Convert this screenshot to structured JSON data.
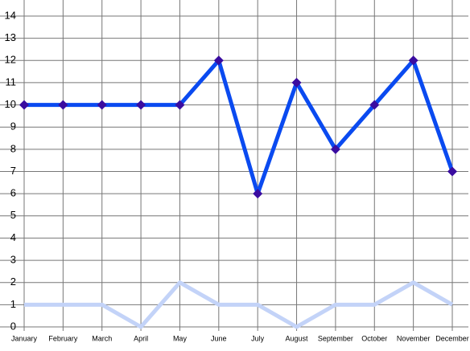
{
  "chart_data": {
    "type": "line",
    "categories": [
      "January",
      "February",
      "March",
      "April",
      "May",
      "June",
      "July",
      "August",
      "September",
      "October",
      "November",
      "December"
    ],
    "series": [
      {
        "color": "#0a4af0",
        "marker_color": "#3a0ca0",
        "values": [
          10,
          10,
          10,
          10,
          10,
          12,
          6,
          11,
          8,
          10,
          12,
          7
        ]
      },
      {
        "color": "#c3d3f8",
        "values": [
          1,
          1,
          1,
          0,
          2,
          1,
          1,
          0,
          1,
          1,
          2,
          1
        ]
      }
    ],
    "ylim": [
      0,
      14
    ],
    "yticks": [
      0,
      1,
      2,
      3,
      4,
      5,
      6,
      7,
      8,
      9,
      10,
      11,
      12,
      13,
      14
    ],
    "grid": true
  }
}
